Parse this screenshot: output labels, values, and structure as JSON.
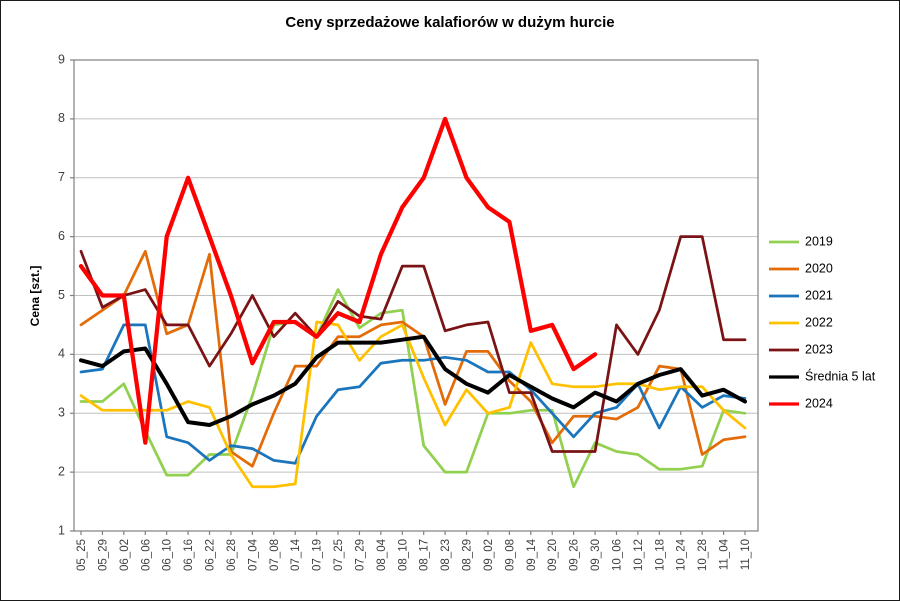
{
  "figure": {
    "background": "#FFFFFF",
    "border_color": "#1A1A1A"
  },
  "chart_data": {
    "type": "line",
    "title": "Ceny sprzedażowe kalafiorów w dużym hurcie",
    "ylabel": "Cena [szt.]",
    "xlabel": "",
    "ylim": [
      1,
      9
    ],
    "y_ticks": [
      1,
      2,
      3,
      4,
      5,
      6,
      7,
      8,
      9
    ],
    "grid": true,
    "legend_position": "right",
    "axis_color": "#808080",
    "grid_color": "#C0C0C0",
    "tick_label_color": "#3F3F3F",
    "categories": [
      "05_25",
      "05_29",
      "06_02",
      "06_06",
      "06_10",
      "06_16",
      "06_22",
      "06_28",
      "07_04",
      "07_08",
      "07_14",
      "07_19",
      "07_25",
      "07_29",
      "08_04",
      "08_10",
      "08_17",
      "08_23",
      "08_29",
      "09_02",
      "09_08",
      "09_14",
      "09_20",
      "09_26",
      "09_30",
      "10_06",
      "10_12",
      "10_18",
      "10_24",
      "10_28",
      "11_04",
      "11_10"
    ],
    "series": [
      {
        "name": "2019",
        "color": "#92D050",
        "width": 2.75,
        "values": [
          3.2,
          3.2,
          3.5,
          2.7,
          1.95,
          1.95,
          2.3,
          2.3,
          3.3,
          4.5,
          4.55,
          4.3,
          5.1,
          4.45,
          4.7,
          4.75,
          2.45,
          2.0,
          2.0,
          3.0,
          3.0,
          3.05,
          3.05,
          1.75,
          2.5,
          2.35,
          2.3,
          2.05,
          2.05,
          2.1,
          3.05,
          3.0
        ]
      },
      {
        "name": "2020",
        "color": "#E36C09",
        "width": 2.75,
        "values": [
          4.5,
          4.75,
          5.0,
          5.75,
          4.35,
          4.5,
          5.7,
          2.35,
          2.1,
          3.0,
          3.8,
          3.8,
          4.3,
          4.3,
          4.5,
          4.55,
          4.3,
          3.15,
          4.05,
          4.05,
          3.55,
          3.2,
          2.5,
          2.95,
          2.95,
          2.9,
          3.1,
          3.8,
          3.75,
          2.3,
          2.55,
          2.6
        ]
      },
      {
        "name": "2021",
        "color": "#1B75BC",
        "width": 2.75,
        "values": [
          3.7,
          3.75,
          4.5,
          4.5,
          2.6,
          2.5,
          2.2,
          2.45,
          2.4,
          2.2,
          2.15,
          2.95,
          3.4,
          3.45,
          3.85,
          3.9,
          3.9,
          3.95,
          3.9,
          3.7,
          3.7,
          3.4,
          3.0,
          2.6,
          3.0,
          3.1,
          3.5,
          2.75,
          3.45,
          3.1,
          3.3,
          3.25
        ]
      },
      {
        "name": "2022",
        "color": "#FFC000",
        "width": 2.75,
        "values": [
          3.3,
          3.05,
          3.05,
          3.05,
          3.05,
          3.2,
          3.1,
          2.3,
          1.75,
          1.75,
          1.8,
          4.55,
          4.5,
          3.9,
          4.3,
          4.5,
          3.6,
          2.8,
          3.4,
          3.0,
          3.1,
          4.2,
          3.5,
          3.45,
          3.45,
          3.5,
          3.5,
          3.4,
          3.45,
          3.45,
          3.05,
          2.75
        ]
      },
      {
        "name": "2023",
        "color": "#7A1315",
        "width": 2.75,
        "values": [
          5.75,
          4.8,
          5.0,
          5.1,
          4.5,
          4.5,
          3.8,
          4.35,
          5.0,
          4.3,
          4.7,
          4.3,
          4.9,
          4.65,
          4.6,
          5.5,
          5.5,
          4.4,
          4.5,
          4.55,
          3.35,
          3.35,
          2.35,
          2.35,
          2.35,
          4.5,
          4.0,
          4.75,
          6.0,
          6.0,
          4.25,
          4.25
        ]
      },
      {
        "name": "Średnia 5 lat",
        "color": "#000000",
        "width": 4,
        "values": [
          3.9,
          3.8,
          4.05,
          4.1,
          3.5,
          2.85,
          2.8,
          2.95,
          3.15,
          3.3,
          3.5,
          3.95,
          4.2,
          4.2,
          4.2,
          4.25,
          4.3,
          3.75,
          3.5,
          3.35,
          3.65,
          3.45,
          3.25,
          3.1,
          3.35,
          3.2,
          3.5,
          3.65,
          3.75,
          3.3,
          3.4,
          3.2
        ]
      },
      {
        "name": "2024",
        "color": "#FF0000",
        "width": 4.25,
        "values": [
          5.5,
          5.0,
          5.0,
          2.5,
          6.0,
          7.0,
          6.0,
          5.0,
          3.85,
          4.55,
          4.55,
          4.3,
          4.7,
          4.55,
          5.7,
          6.5,
          7.0,
          8.0,
          7.0,
          6.5,
          6.25,
          4.4,
          4.5,
          3.75,
          4.0,
          null,
          null,
          null,
          null,
          null,
          null,
          null
        ]
      }
    ]
  }
}
